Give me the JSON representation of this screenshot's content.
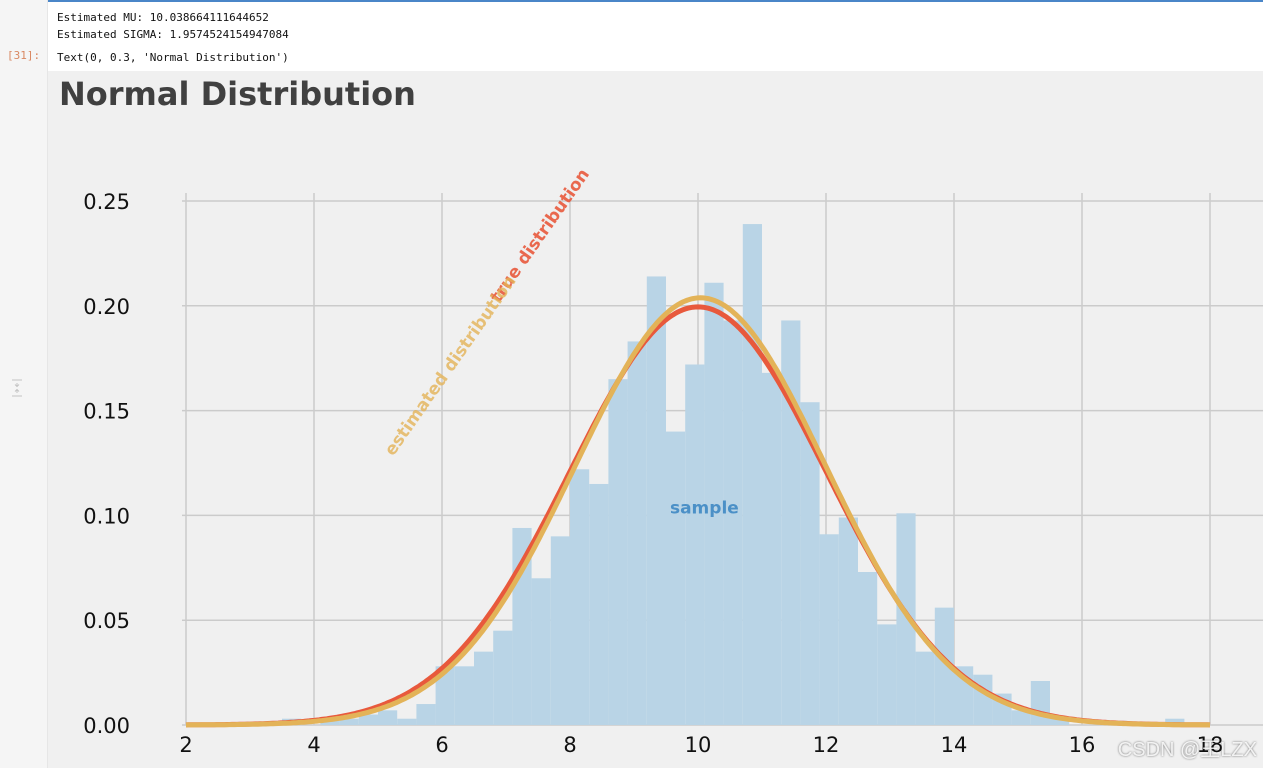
{
  "notebook": {
    "output_lines": [
      "Estimated MU: 10.038664111644652",
      "Estimated SIGMA: 1.9574524154947084"
    ],
    "cell_prompt": "[31]:",
    "text_repr": "Text(0, 0.3, 'Normal Distribution')",
    "watermark": "CSDN @王LZX"
  },
  "chart_data": {
    "type": "bar",
    "title": "Normal Distribution",
    "xlabel": "",
    "ylabel": "",
    "xlim": [
      2,
      18
    ],
    "ylim": [
      0,
      0.25
    ],
    "grid": true,
    "x_ticks": [
      2,
      4,
      6,
      8,
      10,
      12,
      14,
      16,
      18
    ],
    "y_ticks": [
      0.0,
      0.05,
      0.1,
      0.15,
      0.2,
      0.25
    ],
    "x_tick_labels": [
      "2",
      "4",
      "6",
      "8",
      "10",
      "12",
      "14",
      "16",
      "18"
    ],
    "y_tick_labels": [
      "0.00",
      "0.05",
      "0.10",
      "0.15",
      "0.20",
      "0.25"
    ],
    "histogram": {
      "bin_width": 0.3,
      "bins_start": [
        3.5,
        4.1,
        4.4,
        4.7,
        5.0,
        5.3,
        5.6,
        5.9,
        6.2,
        6.5,
        6.8,
        7.1,
        7.4,
        7.7,
        8.0,
        8.3,
        8.6,
        8.9,
        9.2,
        9.5,
        9.8,
        10.1,
        10.4,
        10.7,
        11.0,
        11.3,
        11.6,
        11.9,
        12.2,
        12.5,
        12.8,
        13.1,
        13.4,
        13.7,
        14.0,
        14.3,
        14.6,
        14.9,
        15.2,
        15.5,
        16.4,
        17.3
      ],
      "values": [
        0.003,
        0.002,
        0.003,
        0.005,
        0.007,
        0.003,
        0.01,
        0.028,
        0.028,
        0.035,
        0.045,
        0.094,
        0.07,
        0.09,
        0.122,
        0.115,
        0.165,
        0.183,
        0.214,
        0.14,
        0.172,
        0.211,
        0.193,
        0.239,
        0.168,
        0.193,
        0.154,
        0.091,
        0.099,
        0.073,
        0.048,
        0.101,
        0.035,
        0.056,
        0.028,
        0.024,
        0.015,
        0.007,
        0.021,
        0.003,
        0.002,
        0.003
      ],
      "color": "#b9d4e6"
    },
    "curves": [
      {
        "name": "true distribution",
        "mu": 10.0,
        "sigma": 2.0,
        "color": "#e8593c",
        "label_x": 7.6,
        "label_y": 0.232,
        "rotation": -55
      },
      {
        "name": "estimated distribution",
        "mu": 10.038664111644652,
        "sigma": 1.9574524154947084,
        "color": "#e3b358",
        "label_x": 6.2,
        "label_y": 0.17,
        "rotation": -55
      }
    ],
    "annotations": [
      {
        "text": "sample",
        "x": 10.1,
        "y": 0.101,
        "color": "#4b90c7"
      }
    ]
  }
}
